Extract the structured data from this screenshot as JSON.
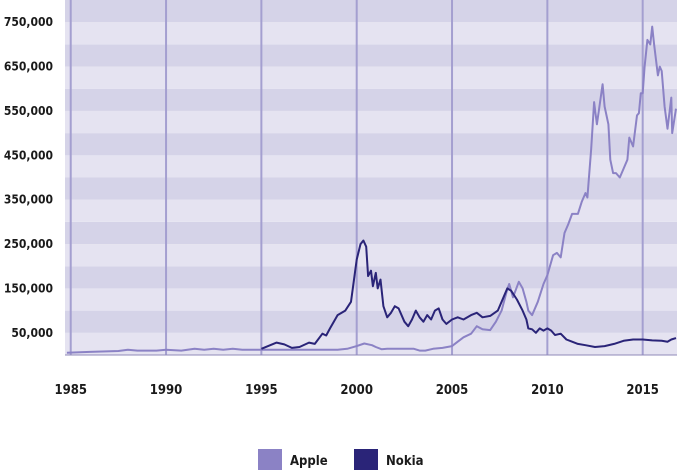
{
  "chart_data": {
    "type": "line",
    "title": "",
    "xlabel": "",
    "ylabel": "",
    "xlim": [
      1984.7,
      2016.8
    ],
    "ylim": [
      0,
      800000
    ],
    "grid": "alternating horizontal bands, vertical lines every 5 years",
    "legend_position": "bottom-center",
    "y_ticks": [
      50000,
      150000,
      250000,
      350000,
      450000,
      550000,
      650000,
      750000
    ],
    "y_tick_labels": [
      "50,000",
      "150,000",
      "250,000",
      "350,000",
      "450,000",
      "550,000",
      "650,000",
      "750,000"
    ],
    "x_ticks": [
      1985,
      1990,
      1995,
      2000,
      2005,
      2010,
      2015
    ],
    "x_tick_labels": [
      "1985",
      "1990",
      "1995",
      "2000",
      "2005",
      "2010",
      "2015"
    ],
    "series": [
      {
        "name": "Apple",
        "color": "#8b82c5",
        "points": [
          [
            1984.8,
            5000
          ],
          [
            1986.0,
            7000
          ],
          [
            1987.5,
            9000
          ],
          [
            1988.0,
            12000
          ],
          [
            1988.5,
            10000
          ],
          [
            1989.5,
            10000
          ],
          [
            1990.0,
            12000
          ],
          [
            1990.8,
            10000
          ],
          [
            1991.5,
            14000
          ],
          [
            1992.0,
            12000
          ],
          [
            1992.5,
            14000
          ],
          [
            1993.0,
            12000
          ],
          [
            1993.5,
            14000
          ],
          [
            1994.0,
            12000
          ],
          [
            1995.0,
            12000
          ],
          [
            1996.0,
            12000
          ],
          [
            1997.0,
            12000
          ],
          [
            1998.0,
            12000
          ],
          [
            1999.0,
            12000
          ],
          [
            1999.5,
            14000
          ],
          [
            2000.0,
            20000
          ],
          [
            2000.4,
            26000
          ],
          [
            2000.8,
            22000
          ],
          [
            2001.0,
            18000
          ],
          [
            2001.3,
            13000
          ],
          [
            2001.6,
            14000
          ],
          [
            2002.0,
            14000
          ],
          [
            2003.0,
            14000
          ],
          [
            2003.3,
            10000
          ],
          [
            2003.6,
            10000
          ],
          [
            2004.0,
            14000
          ],
          [
            2004.5,
            16000
          ],
          [
            2005.0,
            20000
          ],
          [
            2005.3,
            30000
          ],
          [
            2005.6,
            40000
          ],
          [
            2006.0,
            48000
          ],
          [
            2006.3,
            65000
          ],
          [
            2006.6,
            58000
          ],
          [
            2007.0,
            56000
          ],
          [
            2007.3,
            75000
          ],
          [
            2007.6,
            100000
          ],
          [
            2007.9,
            148000
          ],
          [
            2008.0,
            160000
          ],
          [
            2008.2,
            130000
          ],
          [
            2008.5,
            165000
          ],
          [
            2008.7,
            150000
          ],
          [
            2008.9,
            120000
          ],
          [
            2009.0,
            100000
          ],
          [
            2009.2,
            90000
          ],
          [
            2009.5,
            120000
          ],
          [
            2009.8,
            160000
          ],
          [
            2010.0,
            180000
          ],
          [
            2010.3,
            225000
          ],
          [
            2010.5,
            230000
          ],
          [
            2010.7,
            220000
          ],
          [
            2010.9,
            275000
          ],
          [
            2011.1,
            295000
          ],
          [
            2011.3,
            318000
          ],
          [
            2011.6,
            318000
          ],
          [
            2011.8,
            345000
          ],
          [
            2012.0,
            365000
          ],
          [
            2012.1,
            355000
          ],
          [
            2012.3,
            465000
          ],
          [
            2012.45,
            570000
          ],
          [
            2012.6,
            520000
          ],
          [
            2012.8,
            580000
          ],
          [
            2012.9,
            610000
          ],
          [
            2013.0,
            560000
          ],
          [
            2013.2,
            520000
          ],
          [
            2013.3,
            440000
          ],
          [
            2013.45,
            410000
          ],
          [
            2013.6,
            410000
          ],
          [
            2013.8,
            400000
          ],
          [
            2014.0,
            420000
          ],
          [
            2014.2,
            440000
          ],
          [
            2014.3,
            490000
          ],
          [
            2014.5,
            470000
          ],
          [
            2014.7,
            540000
          ],
          [
            2014.8,
            545000
          ],
          [
            2014.9,
            590000
          ],
          [
            2015.0,
            590000
          ],
          [
            2015.1,
            650000
          ],
          [
            2015.25,
            710000
          ],
          [
            2015.4,
            700000
          ],
          [
            2015.5,
            740000
          ],
          [
            2015.6,
            700000
          ],
          [
            2015.8,
            630000
          ],
          [
            2015.9,
            650000
          ],
          [
            2016.0,
            640000
          ],
          [
            2016.15,
            560000
          ],
          [
            2016.3,
            510000
          ],
          [
            2016.5,
            580000
          ],
          [
            2016.55,
            500000
          ],
          [
            2016.75,
            555000
          ]
        ]
      },
      {
        "name": "Nokia",
        "color": "#2a2478",
        "points": [
          [
            1995.0,
            14000
          ],
          [
            1995.8,
            28000
          ],
          [
            1996.2,
            24000
          ],
          [
            1996.6,
            16000
          ],
          [
            1997.0,
            18000
          ],
          [
            1997.5,
            28000
          ],
          [
            1997.8,
            25000
          ],
          [
            1998.2,
            48000
          ],
          [
            1998.4,
            44000
          ],
          [
            1998.6,
            60000
          ],
          [
            1999.0,
            90000
          ],
          [
            1999.4,
            100000
          ],
          [
            1999.7,
            120000
          ],
          [
            2000.0,
            215000
          ],
          [
            2000.2,
            250000
          ],
          [
            2000.35,
            258000
          ],
          [
            2000.5,
            244000
          ],
          [
            2000.6,
            178000
          ],
          [
            2000.75,
            190000
          ],
          [
            2000.85,
            155000
          ],
          [
            2001.0,
            185000
          ],
          [
            2001.1,
            150000
          ],
          [
            2001.25,
            170000
          ],
          [
            2001.4,
            110000
          ],
          [
            2001.6,
            85000
          ],
          [
            2001.8,
            95000
          ],
          [
            2002.0,
            110000
          ],
          [
            2002.2,
            105000
          ],
          [
            2002.5,
            75000
          ],
          [
            2002.7,
            65000
          ],
          [
            2002.9,
            80000
          ],
          [
            2003.1,
            100000
          ],
          [
            2003.3,
            85000
          ],
          [
            2003.5,
            75000
          ],
          [
            2003.7,
            90000
          ],
          [
            2003.9,
            80000
          ],
          [
            2004.1,
            100000
          ],
          [
            2004.3,
            105000
          ],
          [
            2004.5,
            80000
          ],
          [
            2004.7,
            70000
          ],
          [
            2005.0,
            80000
          ],
          [
            2005.3,
            85000
          ],
          [
            2005.6,
            80000
          ],
          [
            2006.0,
            90000
          ],
          [
            2006.3,
            95000
          ],
          [
            2006.6,
            85000
          ],
          [
            2007.0,
            88000
          ],
          [
            2007.4,
            100000
          ],
          [
            2007.7,
            130000
          ],
          [
            2007.9,
            150000
          ],
          [
            2008.1,
            145000
          ],
          [
            2008.4,
            125000
          ],
          [
            2008.7,
            100000
          ],
          [
            2008.9,
            80000
          ],
          [
            2009.0,
            60000
          ],
          [
            2009.2,
            58000
          ],
          [
            2009.4,
            50000
          ],
          [
            2009.6,
            60000
          ],
          [
            2009.8,
            55000
          ],
          [
            2010.0,
            60000
          ],
          [
            2010.2,
            55000
          ],
          [
            2010.4,
            45000
          ],
          [
            2010.7,
            48000
          ],
          [
            2011.0,
            35000
          ],
          [
            2011.3,
            30000
          ],
          [
            2011.6,
            25000
          ],
          [
            2012.0,
            22000
          ],
          [
            2012.5,
            18000
          ],
          [
            2013.0,
            20000
          ],
          [
            2013.5,
            25000
          ],
          [
            2014.0,
            32000
          ],
          [
            2014.5,
            35000
          ],
          [
            2015.0,
            35000
          ],
          [
            2015.5,
            33000
          ],
          [
            2016.0,
            32000
          ],
          [
            2016.3,
            30000
          ],
          [
            2016.5,
            35000
          ],
          [
            2016.75,
            38000
          ]
        ]
      }
    ]
  }
}
